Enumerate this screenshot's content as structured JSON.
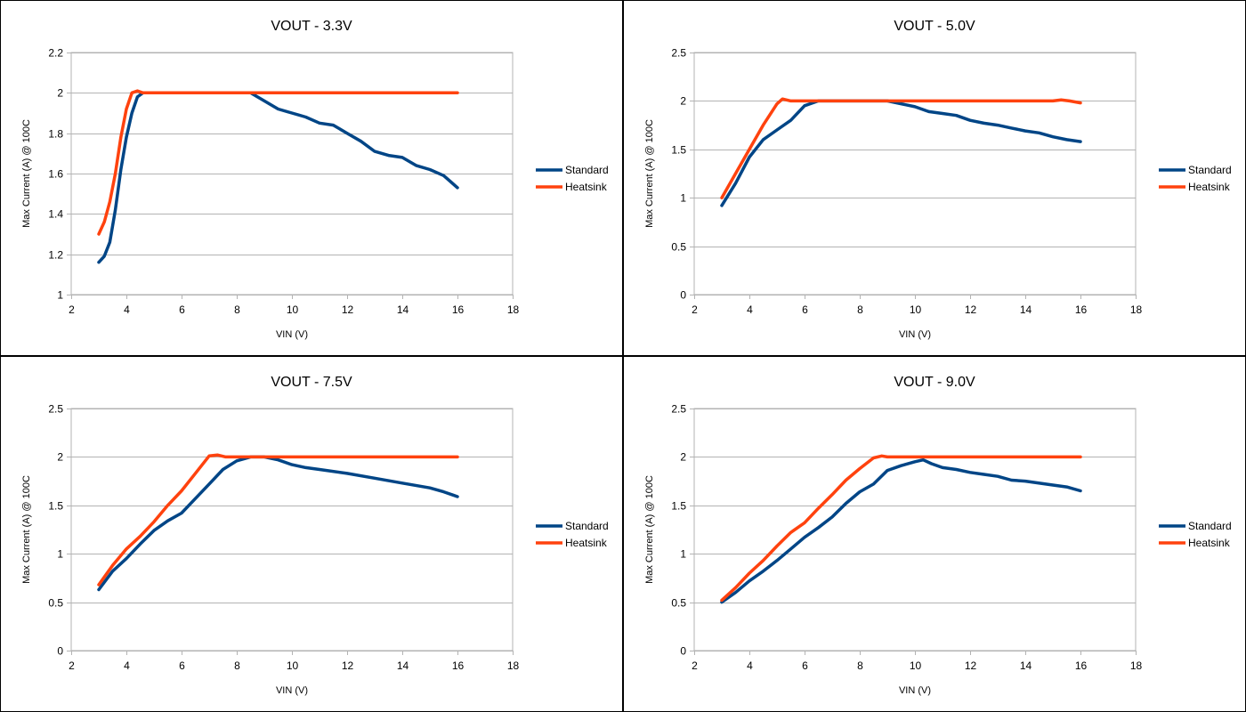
{
  "colors": {
    "standard": "#004586",
    "heatsink": "#ff420e",
    "grid": "#b3b3b3"
  },
  "chart_data": [
    {
      "type": "line",
      "title": "VOUT - 3.3V",
      "xlabel": "VIN (V)",
      "ylabel": "Max Current (A) @ 100C",
      "xlim": [
        2,
        18
      ],
      "ylim": [
        1,
        2.2
      ],
      "xticks": [
        2,
        4,
        6,
        8,
        10,
        12,
        14,
        16,
        18
      ],
      "yticks": [
        1,
        1.2,
        1.4,
        1.6,
        1.8,
        2,
        2.2
      ],
      "grid": true,
      "legend": "right",
      "series": [
        {
          "name": "Standard",
          "x": [
            3.0,
            3.2,
            3.4,
            3.6,
            3.8,
            4.0,
            4.2,
            4.4,
            4.6,
            4.8,
            5.0,
            6.0,
            7.0,
            8.0,
            8.5,
            9.0,
            9.5,
            10.0,
            10.5,
            11.0,
            11.5,
            12.0,
            12.5,
            13.0,
            13.5,
            14.0,
            14.5,
            15.0,
            15.5,
            16.0
          ],
          "y": [
            1.16,
            1.19,
            1.26,
            1.42,
            1.62,
            1.78,
            1.9,
            1.98,
            2.0,
            2.0,
            2.0,
            2.0,
            2.0,
            2.0,
            2.0,
            1.96,
            1.92,
            1.9,
            1.88,
            1.85,
            1.84,
            1.8,
            1.76,
            1.71,
            1.69,
            1.68,
            1.64,
            1.62,
            1.59,
            1.53
          ]
        },
        {
          "name": "Heatsink",
          "x": [
            3.0,
            3.2,
            3.4,
            3.6,
            3.8,
            4.0,
            4.2,
            4.4,
            4.6,
            5.0,
            6.0,
            8.0,
            10.0,
            12.0,
            14.0,
            16.0
          ],
          "y": [
            1.3,
            1.36,
            1.46,
            1.6,
            1.78,
            1.92,
            2.0,
            2.01,
            2.0,
            2.0,
            2.0,
            2.0,
            2.0,
            2.0,
            2.0,
            2.0
          ]
        }
      ]
    },
    {
      "type": "line",
      "title": "VOUT - 5.0V",
      "xlabel": "VIN (V)",
      "ylabel": "Max Current (A) @ 100C",
      "xlim": [
        2,
        18
      ],
      "ylim": [
        0,
        2.5
      ],
      "xticks": [
        2,
        4,
        6,
        8,
        10,
        12,
        14,
        16,
        18
      ],
      "yticks": [
        0,
        0.5,
        1,
        1.5,
        2,
        2.5
      ],
      "grid": true,
      "legend": "right",
      "series": [
        {
          "name": "Standard",
          "x": [
            3.0,
            3.5,
            4.0,
            4.5,
            5.0,
            5.5,
            6.0,
            6.5,
            7.0,
            8.0,
            9.0,
            10.0,
            10.5,
            11.0,
            11.5,
            12.0,
            12.5,
            13.0,
            13.5,
            14.0,
            14.5,
            15.0,
            15.5,
            16.0
          ],
          "y": [
            0.92,
            1.15,
            1.42,
            1.6,
            1.7,
            1.8,
            1.95,
            2.0,
            2.0,
            2.0,
            2.0,
            1.94,
            1.89,
            1.87,
            1.85,
            1.8,
            1.77,
            1.75,
            1.72,
            1.69,
            1.67,
            1.63,
            1.6,
            1.58
          ]
        },
        {
          "name": "Heatsink",
          "x": [
            3.0,
            3.5,
            4.0,
            4.5,
            5.0,
            5.2,
            5.5,
            6.0,
            8.0,
            10.0,
            12.0,
            14.0,
            15.0,
            15.3,
            15.6,
            16.0
          ],
          "y": [
            1.0,
            1.25,
            1.5,
            1.75,
            1.97,
            2.02,
            2.0,
            2.0,
            2.0,
            2.0,
            2.0,
            2.0,
            2.0,
            2.01,
            2.0,
            1.98
          ]
        }
      ]
    },
    {
      "type": "line",
      "title": "VOUT - 7.5V",
      "xlabel": "VIN (V)",
      "ylabel": "Max Current (A) @ 100C",
      "xlim": [
        2,
        18
      ],
      "ylim": [
        0,
        2.5
      ],
      "xticks": [
        2,
        4,
        6,
        8,
        10,
        12,
        14,
        16,
        18
      ],
      "yticks": [
        0,
        0.5,
        1,
        1.5,
        2,
        2.5
      ],
      "grid": true,
      "legend": "right",
      "series": [
        {
          "name": "Standard",
          "x": [
            3.0,
            3.5,
            4.0,
            4.5,
            5.0,
            5.5,
            6.0,
            6.5,
            7.0,
            7.5,
            8.0,
            8.5,
            9.0,
            9.5,
            10.0,
            10.5,
            11.0,
            12.0,
            13.0,
            14.0,
            15.0,
            15.5,
            16.0
          ],
          "y": [
            0.63,
            0.82,
            0.95,
            1.1,
            1.24,
            1.34,
            1.42,
            1.57,
            1.72,
            1.87,
            1.96,
            2.0,
            2.0,
            1.97,
            1.92,
            1.89,
            1.87,
            1.83,
            1.78,
            1.73,
            1.68,
            1.64,
            1.59
          ]
        },
        {
          "name": "Heatsink",
          "x": [
            3.0,
            3.5,
            4.0,
            4.5,
            5.0,
            5.5,
            6.0,
            6.5,
            7.0,
            7.3,
            7.6,
            8.0,
            10.0,
            12.0,
            14.0,
            16.0
          ],
          "y": [
            0.68,
            0.88,
            1.05,
            1.18,
            1.33,
            1.5,
            1.65,
            1.83,
            2.01,
            2.02,
            2.0,
            2.0,
            2.0,
            2.0,
            2.0,
            2.0
          ]
        }
      ]
    },
    {
      "type": "line",
      "title": "VOUT - 9.0V",
      "xlabel": "VIN (V)",
      "ylabel": "Max Current (A) @ 100C",
      "xlim": [
        2,
        18
      ],
      "ylim": [
        0,
        2.5
      ],
      "xticks": [
        2,
        4,
        6,
        8,
        10,
        12,
        14,
        16,
        18
      ],
      "yticks": [
        0,
        0.5,
        1,
        1.5,
        2,
        2.5
      ],
      "grid": true,
      "legend": "right",
      "series": [
        {
          "name": "Standard",
          "x": [
            3.0,
            3.5,
            4.0,
            4.5,
            5.0,
            5.5,
            6.0,
            6.5,
            7.0,
            7.5,
            8.0,
            8.5,
            9.0,
            9.5,
            10.0,
            10.3,
            10.6,
            11.0,
            11.5,
            12.0,
            12.5,
            13.0,
            13.5,
            14.0,
            15.0,
            15.5,
            16.0
          ],
          "y": [
            0.5,
            0.6,
            0.72,
            0.82,
            0.93,
            1.05,
            1.17,
            1.27,
            1.38,
            1.52,
            1.64,
            1.72,
            1.86,
            1.91,
            1.95,
            1.97,
            1.93,
            1.89,
            1.87,
            1.84,
            1.82,
            1.8,
            1.76,
            1.75,
            1.71,
            1.69,
            1.65
          ]
        },
        {
          "name": "Heatsink",
          "x": [
            3.0,
            3.5,
            4.0,
            4.5,
            5.0,
            5.5,
            6.0,
            6.5,
            7.0,
            7.5,
            8.0,
            8.5,
            8.8,
            9.0,
            10.0,
            12.0,
            14.0,
            16.0
          ],
          "y": [
            0.52,
            0.65,
            0.8,
            0.93,
            1.08,
            1.22,
            1.32,
            1.47,
            1.61,
            1.76,
            1.88,
            1.99,
            2.01,
            2.0,
            2.0,
            2.0,
            2.0,
            2.0
          ]
        }
      ]
    }
  ]
}
